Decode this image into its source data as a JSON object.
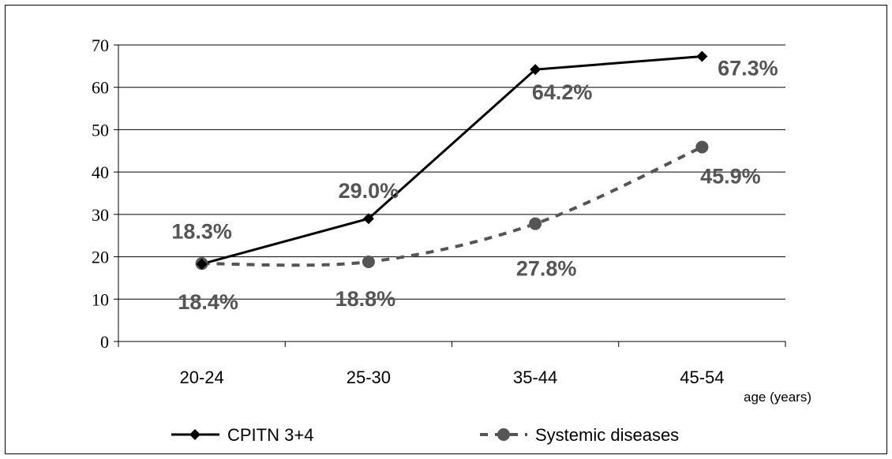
{
  "chart_data": {
    "type": "line",
    "categories": [
      "20-24",
      "25-30",
      "35-44",
      "45-54"
    ],
    "xlabel": "age (years)",
    "ylabel": "",
    "ylim": [
      0,
      70
    ],
    "yticks": [
      0,
      10,
      20,
      30,
      40,
      50,
      60,
      70
    ],
    "grid": true,
    "legend_position": "bottom",
    "series": [
      {
        "name": "CPITN 3+4",
        "values": [
          18.3,
          29.0,
          64.2,
          67.3
        ],
        "labels": [
          "18.3%",
          "29.0%",
          "64.2%",
          "67.3%"
        ],
        "color": "#000000",
        "style": "solid",
        "marker": "diamond"
      },
      {
        "name": "Systemic diseases",
        "values": [
          18.4,
          18.8,
          27.8,
          45.9
        ],
        "labels": [
          "18.4%",
          "18.8%",
          "27.8%",
          "45.9%"
        ],
        "color": "#555555",
        "style": "dashed",
        "marker": "circle"
      }
    ]
  }
}
